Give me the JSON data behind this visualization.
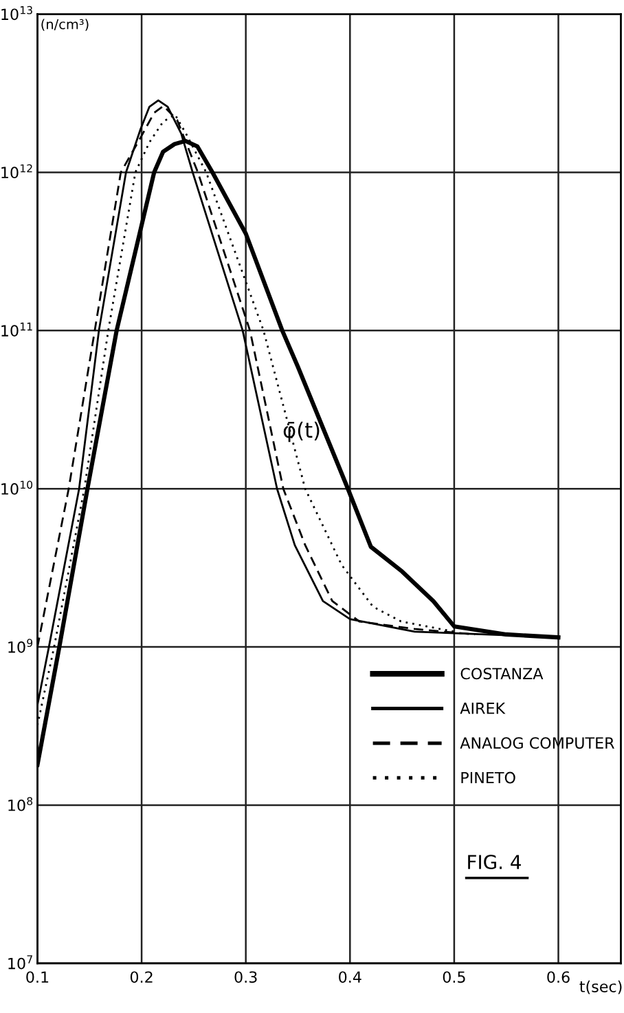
{
  "chart_data": {
    "type": "line",
    "ylabel": "(n/cm³)",
    "xlabel": "t(sec)",
    "annotations": [
      "φ̄(t)",
      "FIG. 4"
    ],
    "log": "y",
    "grid": true,
    "legend": "lower right",
    "xlim": [
      0.1,
      0.66
    ],
    "xticks": [
      0.1,
      0.2,
      0.3,
      0.4,
      0.5,
      0.6
    ],
    "ylim": [
      10000000,
      10000000000000
    ],
    "yticks": [
      {
        "value": 10000000,
        "label": "10$^{7}$"
      },
      {
        "value": 100000000,
        "label": "10$^{8}$"
      },
      {
        "value": 1000000000,
        "label": "10$^{9}$"
      },
      {
        "value": 10000000000,
        "label": "10$^{10}$"
      },
      {
        "value": 100000000000,
        "label": "10$^{11}$"
      },
      {
        "value": 1000000000000,
        "label": "10$^{12}$"
      },
      {
        "value": 10000000000000,
        "label": "10$^{13}$"
      }
    ],
    "series": [
      {
        "name": "COSTANZA",
        "color": "#000000",
        "line_style": "solid",
        "x": [
          0.1,
          0.121,
          0.148,
          0.176,
          0.212,
          0.2206,
          0.2316,
          0.242,
          0.2535,
          0.268,
          0.3,
          0.335,
          0.35,
          0.398,
          0.42,
          0.45,
          0.48,
          0.5,
          0.55,
          0.6
        ],
        "values": [
          180000000,
          1000000000,
          10000000000,
          100000000000,
          1000000000000,
          1350000000000,
          1510000000000,
          1580000000000,
          1460000000000,
          1000000000000,
          410000000000,
          100000000000,
          59000000000,
          10000000000,
          4300000000,
          3000000000,
          1950000000,
          1350000000,
          1200000000,
          1150000000
        ]
      },
      {
        "name": "AIREK",
        "color": "#000000",
        "line_style": "solid",
        "x": [
          0.1,
          0.111,
          0.14,
          0.159,
          0.185,
          0.199,
          0.2075,
          0.216,
          0.225,
          0.238,
          0.249,
          0.297,
          0.33,
          0.347,
          0.374,
          0.4,
          0.462,
          0.6
        ],
        "values": [
          430000000,
          1000000000,
          10000000000,
          100000000000,
          1000000000000,
          1880000000000,
          2600000000000,
          2850000000000,
          2600000000000,
          1760000000000,
          1000000000000,
          100000000000,
          10000000000,
          4400000000,
          1950000000,
          1500000000,
          1250000000,
          1150000000
        ]
      },
      {
        "name": "ANALOG COMPUTER",
        "color": "#000000",
        "line_style": "dashed",
        "x": [
          0.1,
          0.13,
          0.155,
          0.18,
          0.199,
          0.212,
          0.221,
          0.234,
          0.254,
          0.304,
          0.336,
          0.357,
          0.383,
          0.409,
          0.462,
          0.52
        ],
        "values": [
          1000000000,
          10000000000,
          100000000000,
          1000000000000,
          1660000000000,
          2380000000000,
          2630000000000,
          2150000000000,
          1000000000000,
          100000000000,
          10000000000,
          4400000000,
          1950000000,
          1450000000,
          1300000000,
          1200000000
        ]
      },
      {
        "name": "PINETO",
        "color": "#000000",
        "line_style": "dotted",
        "x": [
          0.1,
          0.116,
          0.145,
          0.168,
          0.194,
          0.2075,
          0.2206,
          0.232,
          0.2425,
          0.262,
          0.317,
          0.357,
          0.392,
          0.422,
          0.449,
          0.5
        ],
        "values": [
          320000000,
          1000000000,
          10000000000,
          100000000000,
          1000000000000,
          1550000000000,
          2090000000000,
          2320000000000,
          1760000000000,
          1000000000000,
          100000000000,
          10000000000,
          3300000000,
          1800000000,
          1450000000,
          1250000000
        ]
      }
    ]
  }
}
